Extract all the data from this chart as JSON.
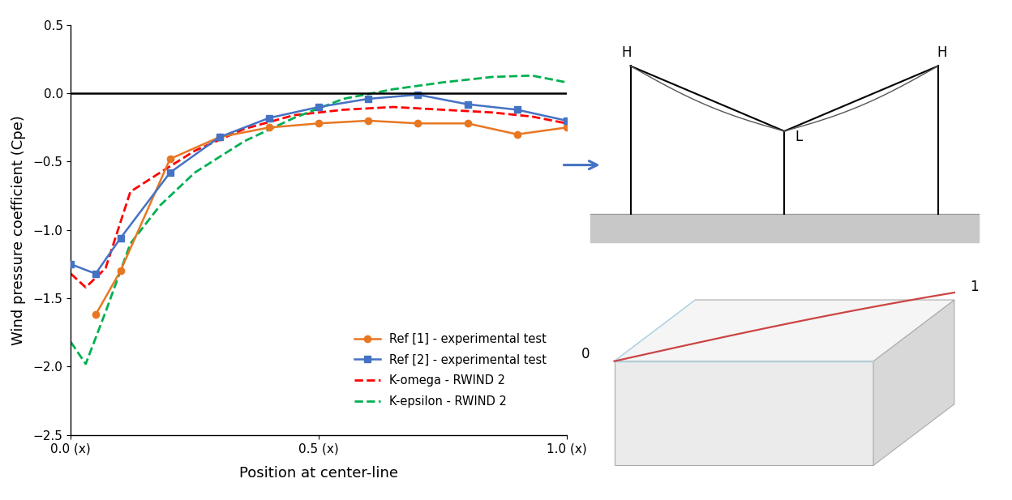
{
  "title": "",
  "xlabel": "Position at center-line",
  "ylabel": "Wind pressure coefficient (Cpe)",
  "xlim": [
    0.0,
    1.0
  ],
  "ylim": [
    -2.5,
    0.5
  ],
  "yticks": [
    0.5,
    0.0,
    -0.5,
    -1.0,
    -1.5,
    -2.0,
    -2.5
  ],
  "xtick_labels": [
    "0.0 (x)",
    "0.5 (x)",
    "1.0 (x)"
  ],
  "xtick_positions": [
    0.0,
    0.5,
    1.0
  ],
  "ref1_x": [
    0.05,
    0.1,
    0.2,
    0.3,
    0.4,
    0.5,
    0.6,
    0.7,
    0.8,
    0.9,
    1.0
  ],
  "ref1_y": [
    -1.62,
    -1.3,
    -0.48,
    -0.32,
    -0.25,
    -0.22,
    -0.2,
    -0.22,
    -0.22,
    -0.3,
    -0.25
  ],
  "ref1_color": "#E87722",
  "ref1_label": "Ref [1] - experimental test",
  "ref2_x": [
    0.0,
    0.05,
    0.1,
    0.2,
    0.3,
    0.4,
    0.5,
    0.6,
    0.7,
    0.8,
    0.9,
    1.0
  ],
  "ref2_y": [
    -1.25,
    -1.32,
    -1.06,
    -0.58,
    -0.32,
    -0.18,
    -0.1,
    -0.04,
    -0.01,
    -0.08,
    -0.12,
    -0.2
  ],
  "ref2_color": "#4472C4",
  "ref2_label": "Ref [2] - experimental test",
  "komega_x": [
    0.0,
    0.03,
    0.07,
    0.12,
    0.18,
    0.25,
    0.35,
    0.45,
    0.55,
    0.65,
    0.75,
    0.85,
    0.93,
    1.0
  ],
  "komega_y": [
    -1.32,
    -1.42,
    -1.28,
    -0.72,
    -0.58,
    -0.42,
    -0.26,
    -0.16,
    -0.12,
    -0.1,
    -0.12,
    -0.14,
    -0.17,
    -0.22
  ],
  "komega_color": "#FF0000",
  "komega_label": "K-omega - RWIND 2",
  "kepsilon_x": [
    0.0,
    0.03,
    0.07,
    0.12,
    0.18,
    0.25,
    0.35,
    0.45,
    0.55,
    0.65,
    0.75,
    0.85,
    0.93,
    1.0
  ],
  "kepsilon_y": [
    -1.82,
    -1.98,
    -1.6,
    -1.1,
    -0.82,
    -0.58,
    -0.35,
    -0.18,
    -0.04,
    0.03,
    0.08,
    0.12,
    0.13,
    0.08
  ],
  "kepsilon_color": "#00B050",
  "kepsilon_label": "K-epsilon - RWIND 2",
  "hline_y": 0.0,
  "hline_color": "black",
  "hline_lw": 1.8,
  "background_color": "#ffffff",
  "grid": false,
  "legend_fontsize": 10.5,
  "axis_fontsize": 13,
  "tick_fontsize": 11
}
